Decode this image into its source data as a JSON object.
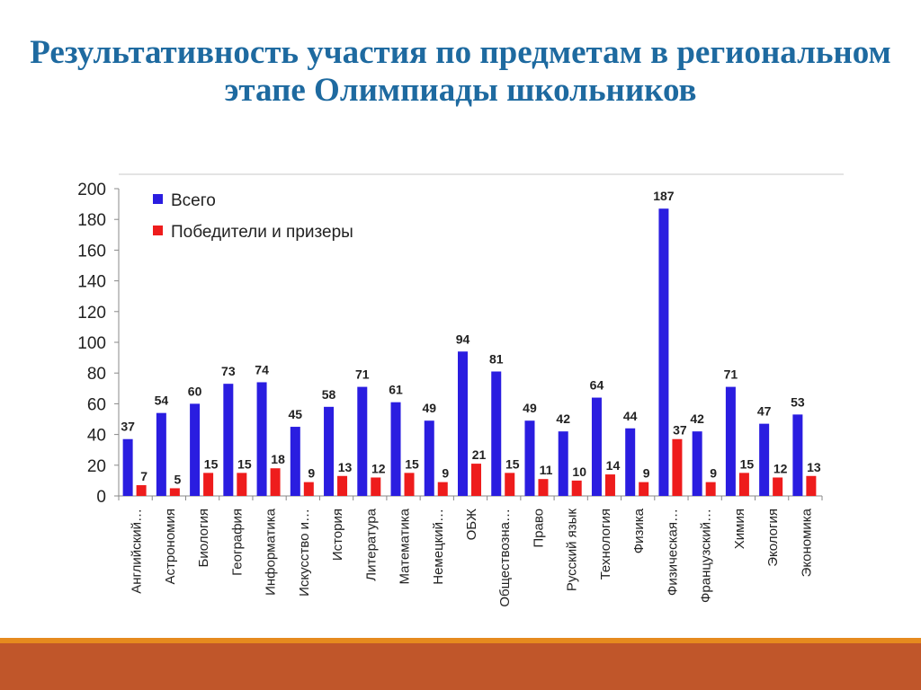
{
  "title": "Результативность участия по предметам в региональном этапе Олимпиады школьников",
  "colors": {
    "title": "#1e6aa0",
    "series_total": "#2a1de0",
    "series_winners": "#ee1c1c",
    "footer_band": "#c0562a",
    "footer_line": "#e68a1e"
  },
  "chart_data": {
    "type": "bar",
    "title": "",
    "xlabel": "",
    "ylabel": "",
    "ylim": [
      0,
      200
    ],
    "yticks": [
      0,
      20,
      40,
      60,
      80,
      100,
      120,
      140,
      160,
      180,
      200
    ],
    "grid": false,
    "legend_position": "top-left",
    "categories": [
      "Английский…",
      "Астрономия",
      "Биология",
      "География",
      "Информатика",
      "Искусство и…",
      "История",
      "Литература",
      "Математика",
      "Немецкий…",
      "ОБЖ",
      "Обществозна…",
      "Право",
      "Русский язык",
      "Технология",
      "Физика",
      "Физическая…",
      "Французский…",
      "Химия",
      "Экология",
      "Экономика"
    ],
    "series": [
      {
        "name": "Всего",
        "values": [
          37,
          54,
          60,
          73,
          74,
          45,
          58,
          71,
          61,
          49,
          94,
          81,
          49,
          42,
          64,
          44,
          187,
          42,
          71,
          47,
          53
        ]
      },
      {
        "name": "Победители и призеры",
        "values": [
          7,
          5,
          15,
          15,
          18,
          9,
          13,
          12,
          15,
          9,
          21,
          15,
          11,
          10,
          14,
          9,
          37,
          9,
          15,
          12,
          13
        ]
      }
    ]
  }
}
